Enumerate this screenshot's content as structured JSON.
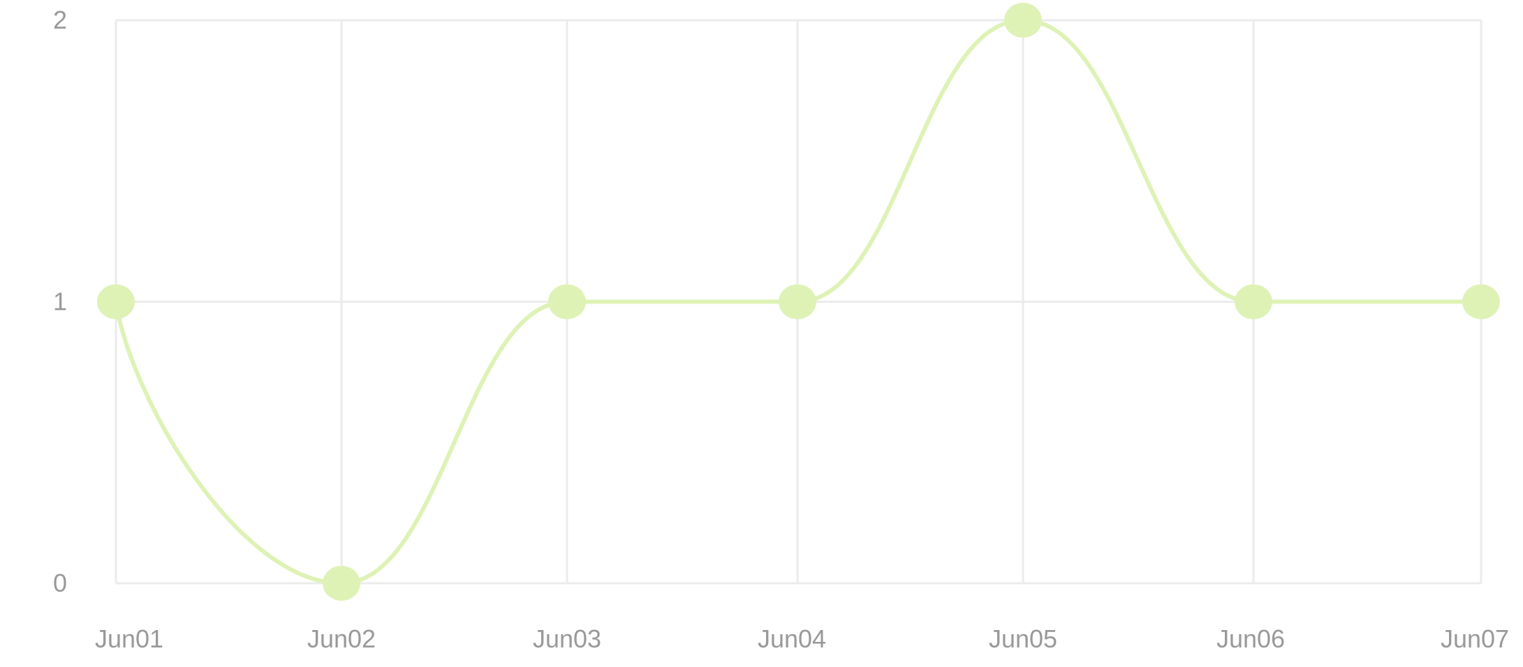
{
  "chart_data": {
    "type": "line",
    "smooth": true,
    "categories": [
      "Jun01",
      "Jun02",
      "Jun03",
      "Jun04",
      "Jun05",
      "Jun06",
      "Jun07"
    ],
    "series": [
      {
        "values": [
          1,
          0,
          1,
          1,
          2,
          1,
          1
        ],
        "color": "#dff2b6"
      }
    ],
    "ylim": [
      0,
      2
    ],
    "yticks": [
      0,
      1,
      2
    ],
    "grid": true,
    "title": "",
    "xlabel": "",
    "ylabel": ""
  }
}
